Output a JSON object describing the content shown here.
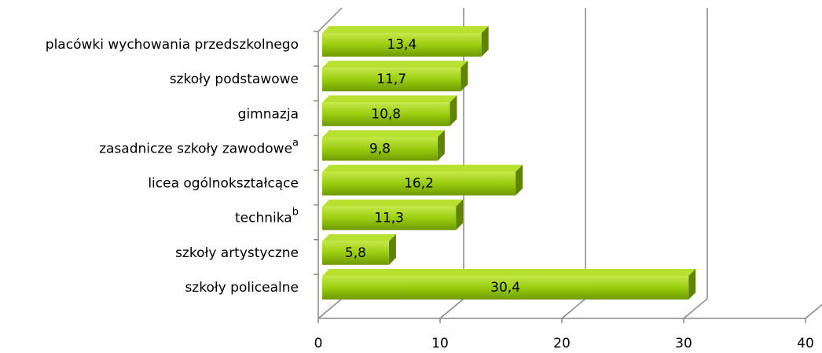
{
  "chart_data": {
    "type": "bar3d_horizontal",
    "categories": [
      "placówki wychowania przedszkolnego",
      "szkoły podstawowe",
      "gimnazja",
      "zasadnicze szkoły zawodowe",
      "licea ogólnokształcące",
      "technika",
      "szkoły artystyczne",
      "szkoły policealne"
    ],
    "category_notes": [
      null,
      null,
      null,
      "a",
      null,
      "b",
      null,
      null
    ],
    "values": [
      13.4,
      11.7,
      10.8,
      9.8,
      16.2,
      11.3,
      5.8,
      30.4
    ],
    "value_labels": [
      "13,4",
      "11,7",
      "10,8",
      "9,8",
      "16,2",
      "11,3",
      "5,8",
      "30,4"
    ],
    "color": "#99cc00",
    "xlim": [
      0,
      40
    ],
    "xticks": [
      0,
      10,
      20,
      30,
      40
    ],
    "grid": true
  }
}
